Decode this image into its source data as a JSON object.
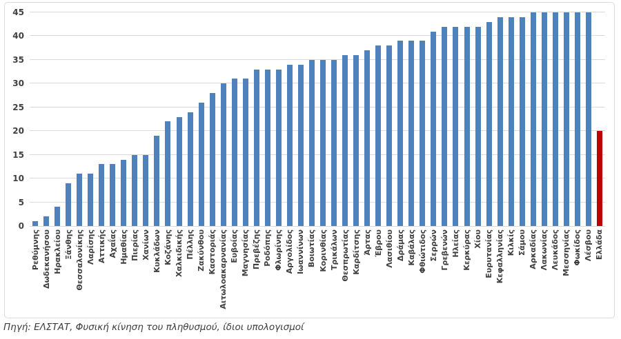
{
  "chart_data": {
    "type": "bar",
    "title": "",
    "xlabel": "",
    "ylabel": "",
    "categories": [
      "Ρεθύμνης",
      "Δωδεκανήσου",
      "Ηρακλείου",
      "Ξάνθης",
      "Θεσσαλονίκης",
      "Λαρίσης",
      "Αττικής",
      "Αχαΐας",
      "Ημαθίας",
      "Πιερίας",
      "Χανίων",
      "Κυκλάδων",
      "Κοζάνης",
      "Χαλκιδικής",
      "Πέλλης",
      "Ζακύνθου",
      "Καστοριάς",
      "Αιτωλοακαρνανίας",
      "Ευβοίας",
      "Μαγνησίας",
      "Πρεβέζης",
      "Ροδόπης",
      "Φλωρίνης",
      "Αργολίδος",
      "Ιωαννίνων",
      "Βοιωτίας",
      "Κορινθίας",
      "Τρικάλων",
      "Θεσπρωτίας",
      "Καρδίτσης",
      "Άρτας",
      "Έβρου",
      "Λασιθίου",
      "Δράμας",
      "Καβάλας",
      "Φθιώτιδος",
      "Σερρών",
      "Γρεβενών",
      "Ηλείας",
      "Κερκύρας",
      "Χίου",
      "Ευρυτανίας",
      "Κεφαλληνίας",
      "Κιλκίς",
      "Σάμου",
      "Αρκαδίας",
      "Λακωνίας",
      "Λευκάδος",
      "Μεσσηνίας",
      "Φωκίδος",
      "Λέσβου",
      "Ελλάδα"
    ],
    "values": [
      1,
      2,
      4,
      9,
      11,
      11,
      13,
      13,
      14,
      15,
      15,
      19,
      22,
      23,
      24,
      26,
      28,
      30,
      31,
      31,
      33,
      33,
      33,
      34,
      34,
      35,
      35,
      35,
      36,
      36,
      37,
      38,
      38,
      39,
      39,
      39,
      41,
      42,
      42,
      42,
      42,
      43,
      44,
      44,
      44,
      45,
      45,
      45,
      45,
      45,
      45,
      20
    ],
    "ylim": [
      0,
      45
    ],
    "yticks": [
      0,
      5,
      10,
      15,
      20,
      25,
      30,
      35,
      40,
      45
    ],
    "grid": true,
    "legend": "none",
    "bar_color": "#4f81bd",
    "highlight_category": "Ελλάδα",
    "highlight_color": "#c00000",
    "gridline_color": "#d9d9d9",
    "axis_text_color": "#404040"
  },
  "source_note": "Πηγή: ΕΛΣΤΑΤ, Φυσική κίνηση του πληθυσμού, ίδιοι υπολογισμοί"
}
